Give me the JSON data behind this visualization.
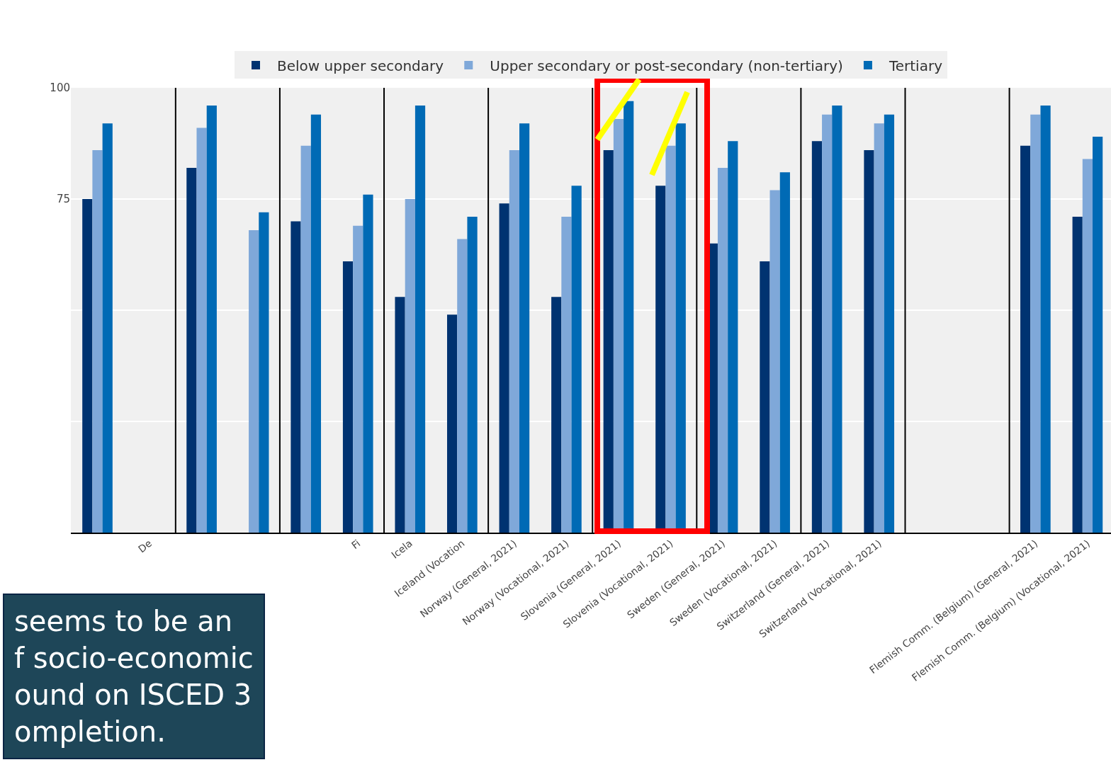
{
  "chart_data": {
    "type": "bar",
    "categories": [
      null,
      "De",
      null,
      null,
      null,
      "Fi",
      "Icela",
      "Iceland (Vocation",
      "Norway (General, 2021)",
      "Norway (Vocational, 2021)",
      "Slovenia (General, 2021)",
      "Slovenia (Vocational, 2021)",
      "Sweden (General, 2021)",
      "Sweden (Vocational, 2021)",
      "Switzerland (General, 2021)",
      "Switzerland (Vocational, 2021)",
      null,
      null,
      "Flemish Comm. (Belgium) (General, 2021)",
      "Flemish Comm. (Belgium) (Vocational, 2021)"
    ],
    "series": [
      {
        "name": "Below upper secondary",
        "color": "#003371",
        "values": [
          75,
          null,
          82,
          null,
          70,
          61,
          53,
          49,
          74,
          53,
          86,
          78,
          65,
          61,
          88,
          86,
          null,
          null,
          87,
          71
        ]
      },
      {
        "name": "Upper secondary or post-secondary (non-tertiary)",
        "color": "#7fa8d9",
        "values": [
          86,
          null,
          91,
          68,
          87,
          69,
          75,
          66,
          86,
          71,
          93,
          87,
          82,
          77,
          94,
          92,
          null,
          null,
          94,
          84
        ]
      },
      {
        "name": "Tertiary",
        "color": "#006ab5",
        "values": [
          92,
          null,
          96,
          72,
          94,
          76,
          96,
          71,
          92,
          78,
          97,
          92,
          88,
          81,
          96,
          94,
          null,
          null,
          96,
          89
        ]
      }
    ],
    "ylim": [
      0,
      100
    ],
    "yticks": [
      {
        "value": 25,
        "label": null
      },
      {
        "value": 50,
        "label": null
      },
      75,
      100
    ],
    "grid": "y",
    "legend": "top",
    "annotations": [
      "seems to be an\nf socio-economic\nound on ISCED 3\nompletion."
    ]
  }
}
